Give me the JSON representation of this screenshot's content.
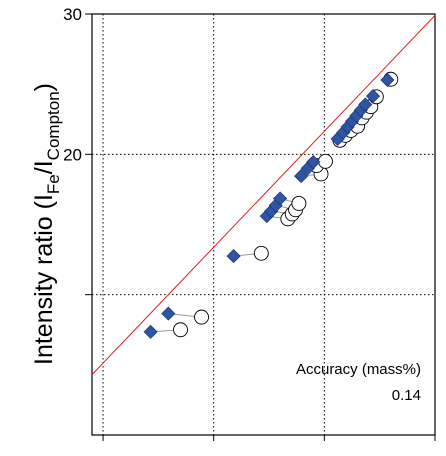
{
  "chart_data": {
    "type": "scatter",
    "ylabel": {
      "prefix": "Intensity ratio (I",
      "sub1": "Fe",
      "middle": "/I",
      "sub2": "Compton",
      "suffix": ")"
    },
    "y_ticks": [
      10,
      20,
      30
    ],
    "y_tick_labels": [
      "",
      "20",
      "30"
    ],
    "x_ticks": [
      0,
      1,
      2,
      3
    ],
    "xlim": [
      -0.1,
      3.0
    ],
    "ylim": [
      0,
      30
    ],
    "grid": true,
    "fit_line": {
      "x": [
        -0.1,
        3.0
      ],
      "y": [
        4.3,
        29.9
      ],
      "color": "#e02020"
    },
    "series": [
      {
        "marker": "diamond",
        "color": "#2f55a4",
        "points": [
          [
            0.43,
            7.35
          ],
          [
            0.59,
            8.65
          ],
          [
            1.18,
            12.75
          ],
          [
            1.48,
            15.6
          ],
          [
            1.52,
            15.95
          ],
          [
            1.56,
            16.35
          ],
          [
            1.6,
            16.85
          ],
          [
            1.79,
            18.45
          ],
          [
            1.85,
            19.0
          ],
          [
            1.9,
            19.45
          ],
          [
            2.12,
            21.1
          ],
          [
            2.17,
            21.55
          ],
          [
            2.21,
            21.95
          ],
          [
            2.25,
            22.35
          ],
          [
            2.29,
            22.75
          ],
          [
            2.33,
            23.15
          ],
          [
            2.37,
            23.55
          ],
          [
            2.44,
            24.15
          ],
          [
            2.57,
            25.3
          ]
        ]
      },
      {
        "marker": "circle",
        "color": "#ffffff",
        "points": [
          [
            0.7,
            7.5
          ],
          [
            0.89,
            8.4
          ],
          [
            1.43,
            12.95
          ],
          [
            1.67,
            15.4
          ],
          [
            1.71,
            15.75
          ],
          [
            1.74,
            16.05
          ],
          [
            1.77,
            16.5
          ],
          [
            1.97,
            18.6
          ],
          [
            1.93,
            19.2
          ],
          [
            2.01,
            19.5
          ],
          [
            2.14,
            21.0
          ],
          [
            2.19,
            21.35
          ],
          [
            2.24,
            21.7
          ],
          [
            2.3,
            22.0
          ],
          [
            2.34,
            22.6
          ],
          [
            2.38,
            23.0
          ],
          [
            2.42,
            23.4
          ],
          [
            2.47,
            24.1
          ],
          [
            2.6,
            25.35
          ]
        ]
      }
    ],
    "annotation": {
      "label": "Accuracy (mass%)",
      "value": "0.14"
    }
  }
}
